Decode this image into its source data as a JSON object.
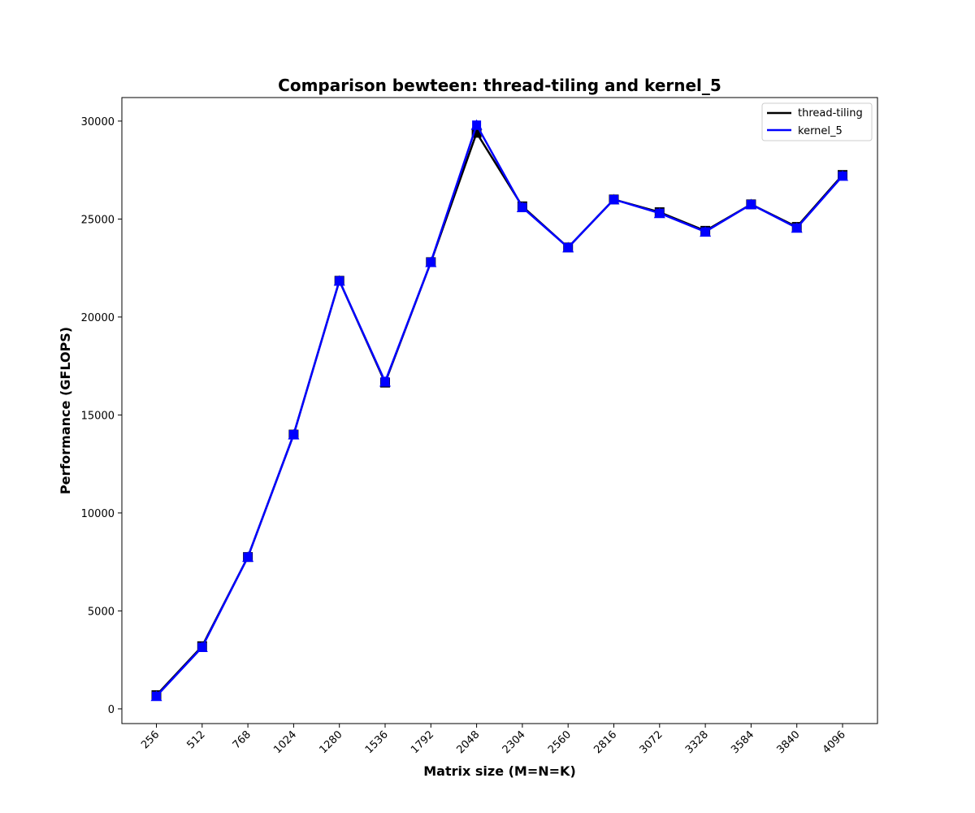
{
  "chart_data": {
    "type": "line",
    "title": "Comparison bewteen: thread-tiling and kernel_5",
    "xlabel": "Matrix size (M=N=K)",
    "ylabel": "Performance (GFLOPS)",
    "categories": [
      "256",
      "512",
      "768",
      "1024",
      "1280",
      "1536",
      "1792",
      "2048",
      "2304",
      "2560",
      "2816",
      "3072",
      "3328",
      "3584",
      "3840",
      "4096"
    ],
    "y_ticks": [
      "0",
      "5000",
      "10000",
      "15000",
      "20000",
      "25000",
      "30000"
    ],
    "ylim": [
      -750,
      31200
    ],
    "grid": false,
    "legend_position": "top-right",
    "series": [
      {
        "name": "thread-tiling",
        "color": "#000000",
        "marker": "square",
        "values": [
          700,
          3200,
          7750,
          14000,
          21850,
          16650,
          22800,
          29400,
          25650,
          23550,
          26000,
          25350,
          24400,
          25750,
          24600,
          27250
        ]
      },
      {
        "name": "kernel_5",
        "color": "#0000ff",
        "marker": "triangle",
        "values": [
          650,
          3150,
          7750,
          14000,
          21850,
          16700,
          22800,
          29800,
          25600,
          23550,
          26000,
          25300,
          24350,
          25750,
          24550,
          27200
        ]
      }
    ]
  }
}
